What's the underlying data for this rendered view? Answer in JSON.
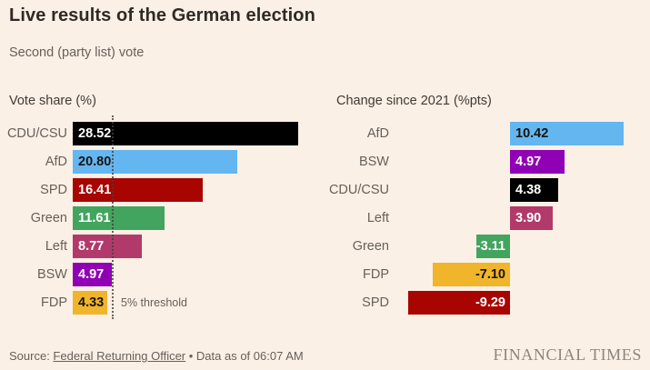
{
  "title": "Live results of the German election",
  "subtitle": "Second (party list) vote",
  "colors": {
    "ui": {
      "background": "#FBF0E5",
      "heading": "#2E2A26",
      "heading2": "#3F3A35",
      "text": "#66605B",
      "logo": "#8C8680",
      "threshold-line": "#45413D"
    },
    "party": {
      "CDU/CSU": "#000000",
      "AfD": "#64B6F1",
      "SPD": "#A80400",
      "Green": "#43A45F",
      "Left": "#B13A6A",
      "BSW": "#9000B4",
      "FDP": "#F1B52B"
    },
    "value_text": {
      "CDU/CSU": "#FFFFFF",
      "AfD": "#16140F",
      "SPD": "#FFFFFF",
      "Green": "#FFFFFF",
      "Left": "#FFFFFF",
      "BSW": "#FFFFFF",
      "FDP": "#16140F"
    }
  },
  "chart_data": [
    {
      "type": "bar",
      "orientation": "horizontal",
      "title": "Vote share (%)",
      "categories": [
        "CDU/CSU",
        "AfD",
        "SPD",
        "Green",
        "Left",
        "BSW",
        "FDP"
      ],
      "values": [
        28.52,
        20.8,
        16.41,
        11.61,
        8.77,
        4.97,
        4.33
      ],
      "value_labels": [
        "28.52",
        "20.80",
        "16.41",
        "11.61",
        "8.77",
        "4.97",
        "4.33"
      ],
      "xlim": [
        0,
        30
      ],
      "grid": false,
      "annotation": {
        "label": "5% threshold",
        "value": 5
      }
    },
    {
      "type": "bar",
      "orientation": "horizontal",
      "title": "Change since 2021 (%pts)",
      "categories": [
        "AfD",
        "BSW",
        "CDU/CSU",
        "Left",
        "Green",
        "FDP",
        "SPD"
      ],
      "values": [
        10.42,
        4.97,
        4.38,
        3.9,
        -3.11,
        -7.1,
        -9.29
      ],
      "value_labels": [
        "10.42",
        "4.97",
        "4.38",
        "3.90",
        "-3.11",
        "-7.10",
        "-9.29"
      ],
      "xlim": [
        -10,
        11
      ],
      "grid": false
    }
  ],
  "footer": {
    "source_prefix": "Source: ",
    "source_link": "Federal Returning Officer",
    "source_suffix": " • Data as of 06:07 AM",
    "logo": "FINANCIAL TIMES"
  }
}
